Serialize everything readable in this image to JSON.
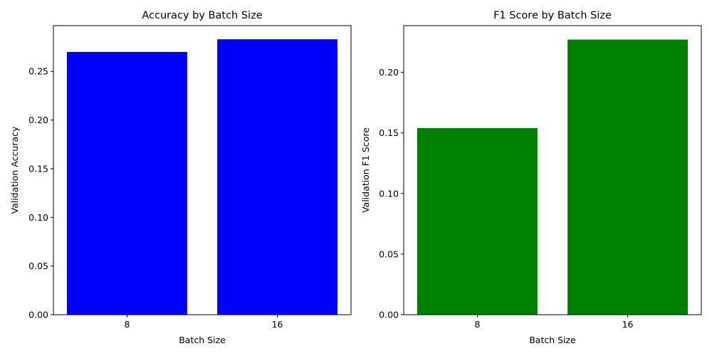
{
  "chart_data": [
    {
      "type": "bar",
      "title": "Accuracy by Batch Size",
      "xlabel": "Batch Size",
      "ylabel": "Validation Accuracy",
      "categories": [
        "8",
        "16"
      ],
      "values": [
        0.27,
        0.283
      ],
      "ylim": [
        0,
        0.297
      ],
      "yticks": [
        "0.00",
        "0.05",
        "0.10",
        "0.15",
        "0.20",
        "0.25"
      ],
      "color": "#0000ff",
      "grid": false
    },
    {
      "type": "bar",
      "title": "F1 Score by Batch Size",
      "xlabel": "Batch Size",
      "ylabel": "Validation F1 Score",
      "categories": [
        "8",
        "16"
      ],
      "values": [
        0.154,
        0.227
      ],
      "ylim": [
        0,
        0.2385
      ],
      "yticks": [
        "0.00",
        "0.05",
        "0.10",
        "0.15",
        "0.20"
      ],
      "color": "#008000",
      "grid": false
    }
  ]
}
